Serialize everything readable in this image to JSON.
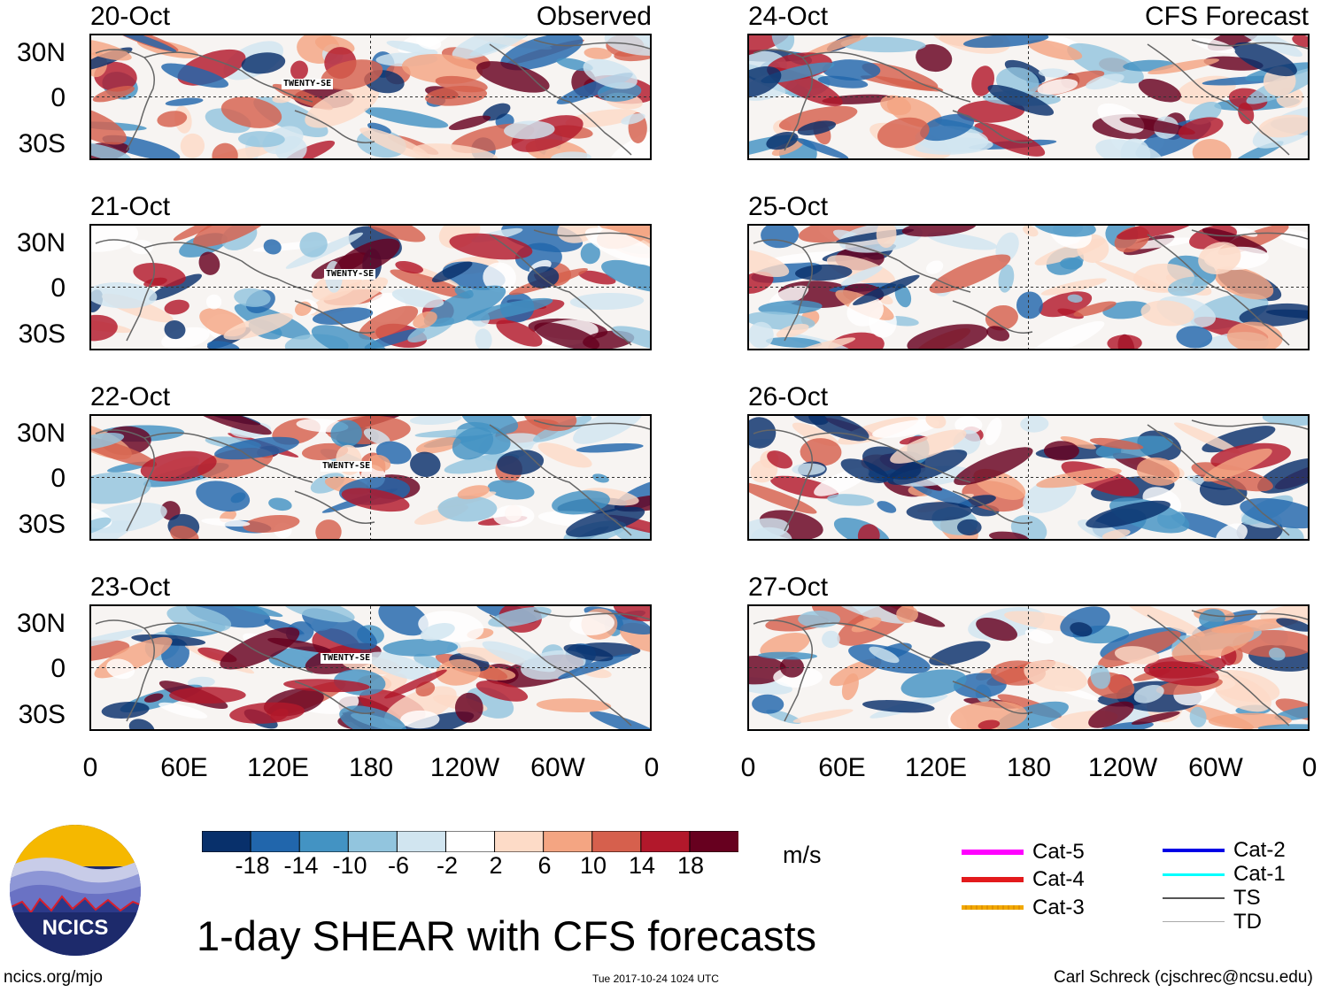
{
  "left_column": {
    "label": "Observed",
    "panels": [
      {
        "date": "20-Oct",
        "storm_label": "TWENTY-SE"
      },
      {
        "date": "21-Oct",
        "storm_label": "TWENTY-SE"
      },
      {
        "date": "22-Oct",
        "storm_label": "TWENTY-SE"
      },
      {
        "date": "23-Oct",
        "storm_label": "TWENTY-SE"
      }
    ]
  },
  "right_column": {
    "label": "CFS Forecast",
    "panels": [
      {
        "date": "24-Oct"
      },
      {
        "date": "25-Oct"
      },
      {
        "date": "26-Oct"
      },
      {
        "date": "27-Oct"
      }
    ]
  },
  "lat_labels": [
    "30N",
    "0",
    "30S"
  ],
  "lon_labels": [
    "0",
    "60E",
    "120E",
    "180",
    "120W",
    "60W",
    "0"
  ],
  "colorbar": {
    "unit": "m/s",
    "ticks": [
      "-18",
      "-14",
      "-10",
      "-6",
      "-2",
      "2",
      "6",
      "10",
      "14",
      "18"
    ],
    "colors": [
      "#08306b",
      "#2166ac",
      "#4393c3",
      "#92c5de",
      "#d1e5f0",
      "#ffffff",
      "#fddbc7",
      "#f4a582",
      "#d6604d",
      "#b2182b",
      "#67001f"
    ]
  },
  "track_legend": [
    {
      "label": "Cat-5",
      "color": "#ff00ff"
    },
    {
      "label": "Cat-4",
      "color": "#e31a1c"
    },
    {
      "label": "Cat-3",
      "color": "#f2a900"
    },
    {
      "label": "Cat-2",
      "color": "#0000e6"
    },
    {
      "label": "Cat-1",
      "color": "#00ffff"
    },
    {
      "label": "TS",
      "color": "#555555"
    },
    {
      "label": "TD",
      "color": "#aaaaaa"
    }
  ],
  "logo": {
    "text": "NCICS"
  },
  "title": "1-day SHEAR with CFS forecasts",
  "footer": {
    "website": "ncics.org/mjo",
    "timestamp": "Tue 2017-10-24 1024 UTC",
    "credit": "Carl Schreck (cjschrec@ncsu.edu)"
  }
}
